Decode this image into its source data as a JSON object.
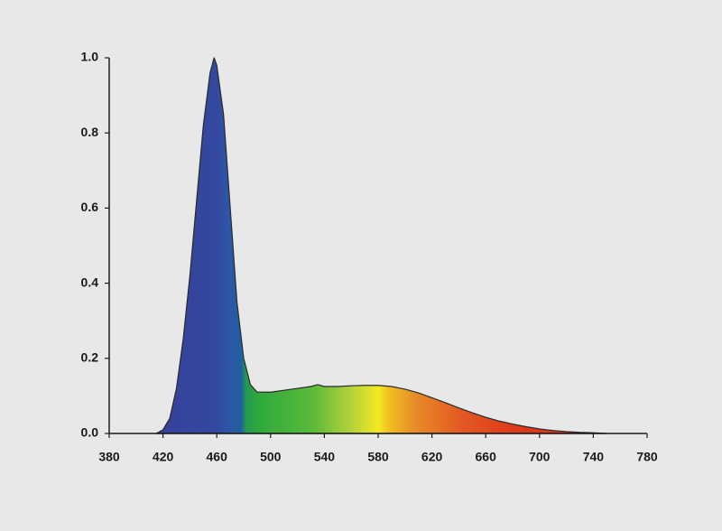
{
  "chart_data": {
    "type": "area",
    "x": [
      415,
      420,
      425,
      430,
      435,
      440,
      445,
      450,
      455,
      458,
      460,
      465,
      470,
      475,
      480,
      485,
      490,
      500,
      510,
      520,
      530,
      535,
      540,
      550,
      560,
      570,
      580,
      590,
      600,
      610,
      620,
      630,
      640,
      650,
      660,
      670,
      680,
      690,
      700,
      710,
      720,
      730,
      740,
      750
    ],
    "y": [
      0,
      0.01,
      0.04,
      0.12,
      0.25,
      0.42,
      0.62,
      0.82,
      0.96,
      1.0,
      0.98,
      0.85,
      0.6,
      0.35,
      0.2,
      0.13,
      0.11,
      0.11,
      0.115,
      0.12,
      0.125,
      0.13,
      0.125,
      0.125,
      0.127,
      0.128,
      0.128,
      0.125,
      0.118,
      0.108,
      0.095,
      0.082,
      0.068,
      0.055,
      0.043,
      0.033,
      0.025,
      0.018,
      0.012,
      0.008,
      0.005,
      0.003,
      0.002,
      0
    ],
    "xlim": [
      380,
      780
    ],
    "xticks": [
      380,
      420,
      460,
      500,
      540,
      580,
      620,
      660,
      700,
      740,
      780
    ],
    "ylim": [
      0,
      1
    ],
    "yticks": [
      {
        "value": 0,
        "label": "0.0"
      },
      0.2,
      0.4,
      0.6,
      0.8,
      {
        "value": 1,
        "label": "1.0"
      }
    ],
    "grid": false
  }
}
